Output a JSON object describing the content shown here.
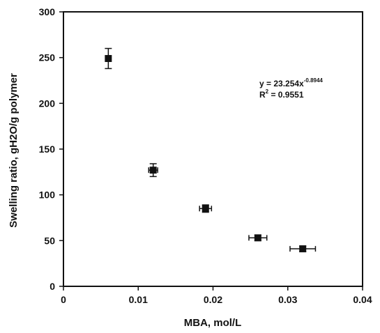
{
  "chart_data": {
    "type": "scatter",
    "title": "",
    "xlabel": "MBA, mol/L",
    "ylabel": "Swelling ratio, gH2O/g polymer",
    "xlim": [
      0,
      0.04
    ],
    "ylim": [
      0,
      300
    ],
    "x_ticks": [
      0,
      0.01,
      0.02,
      0.03,
      0.04
    ],
    "x_tick_labels": [
      "0",
      "0.01",
      "0.02",
      "0.03",
      "0.04"
    ],
    "y_ticks": [
      0,
      50,
      100,
      150,
      200,
      250,
      300
    ],
    "y_tick_labels": [
      "0",
      "50",
      "100",
      "150",
      "200",
      "250",
      "300"
    ],
    "grid": false,
    "legend": "none",
    "points": [
      {
        "x": 0.006,
        "y": 249,
        "y_err": 11,
        "x_err": 0.0003
      },
      {
        "x": 0.012,
        "y": 127,
        "y_err": 7,
        "x_err": 0.0006
      },
      {
        "x": 0.019,
        "y": 85,
        "y_err": 4,
        "x_err": 0.0008
      },
      {
        "x": 0.026,
        "y": 53,
        "y_err": 3,
        "x_err": 0.0012
      },
      {
        "x": 0.032,
        "y": 41,
        "y_err": 3,
        "x_err": 0.0017
      }
    ],
    "trendline": {
      "type": "power",
      "a": 23.254,
      "b": -0.8944,
      "x_from": 0.006,
      "x_to": 0.033
    },
    "equation": {
      "eq_prefix": "y = 23.254x",
      "eq_exponent": "-0.8944",
      "r2_label": "R",
      "r2_exponent": "2",
      "r2_value": " = 0.9551"
    },
    "colors": {
      "marker": "#111111",
      "line": "#111111",
      "axis": "#111111"
    }
  }
}
